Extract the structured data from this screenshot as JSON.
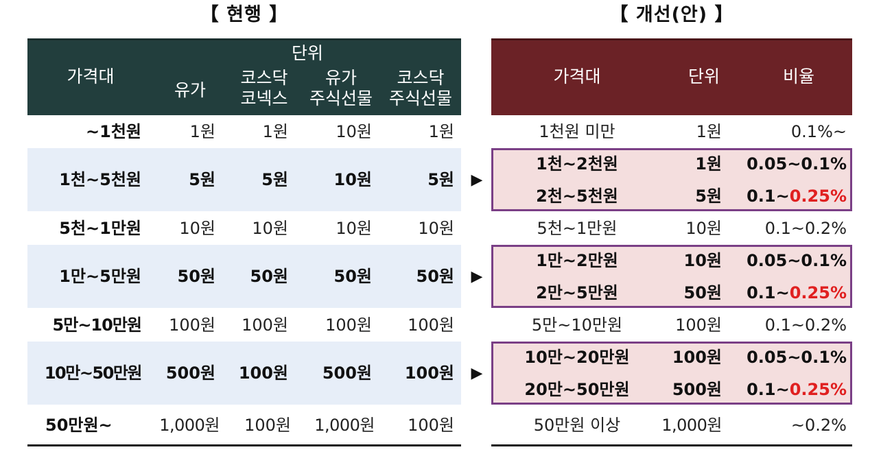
{
  "titles": {
    "current": "【 현행 】",
    "proposed": "【 개선(안) 】"
  },
  "left_header": {
    "price_range": "가격대",
    "unit_group": "단위",
    "col1": "유가",
    "col2_line1": "코스닥",
    "col2_line2": "코넥스",
    "col3_line1": "유가",
    "col3_line2": "주식선물",
    "col4_line1": "코스닥",
    "col4_line2": "주식선물"
  },
  "right_header": {
    "price_range": "가격대",
    "unit": "단위",
    "ratio": "비율"
  },
  "left_rows": [
    {
      "range": "~1천원",
      "c1": "1원",
      "c2": "1원",
      "c3": "10원",
      "c4": "1원"
    },
    {
      "range": "1천~5천원",
      "c1": "5원",
      "c2": "5원",
      "c3": "10원",
      "c4": "5원"
    },
    {
      "range": "5천~1만원",
      "c1": "10원",
      "c2": "10원",
      "c3": "10원",
      "c4": "10원"
    },
    {
      "range": "1만~5만원",
      "c1": "50원",
      "c2": "50원",
      "c3": "50원",
      "c4": "50원"
    },
    {
      "range": "5만~10만원",
      "c1": "100원",
      "c2": "100원",
      "c3": "100원",
      "c4": "100원"
    },
    {
      "range": "10만~50만원",
      "c1": "500원",
      "c2": "100원",
      "c3": "500원",
      "c4": "100원"
    },
    {
      "range": "50만원~",
      "c1": "1,000원",
      "c2": "100원",
      "c3": "1,000원",
      "c4": "100원"
    }
  ],
  "right_rows": [
    {
      "range": "1천원 미만",
      "unit": "1원",
      "ratio": "0.1%~"
    },
    {
      "range": "1천~2천원",
      "unit": "1원",
      "ratio": "0.05~0.1%"
    },
    {
      "range": "2천~5천원",
      "unit": "5원",
      "ratio_prefix": "0.1~",
      "ratio_highlight": "0.25%"
    },
    {
      "range": "5천~1만원",
      "unit": "10원",
      "ratio": "0.1~0.2%"
    },
    {
      "range": "1만~2만원",
      "unit": "10원",
      "ratio": "0.05~0.1%"
    },
    {
      "range": "2만~5만원",
      "unit": "50원",
      "ratio_prefix": "0.1~",
      "ratio_highlight": "0.25%"
    },
    {
      "range": "5만~10만원",
      "unit": "100원",
      "ratio": "0.1~0.2%"
    },
    {
      "range": "10만~20만원",
      "unit": "100원",
      "ratio": "0.05~0.1%"
    },
    {
      "range": "20만~50만원",
      "unit": "500원",
      "ratio_prefix": "0.1~",
      "ratio_highlight": "0.25%"
    },
    {
      "range": "50만원 이상",
      "unit": "1,000원",
      "ratio": "~0.2%"
    }
  ],
  "arrow_glyph": "▶",
  "colors": {
    "left_header_bg": "#223e3d",
    "right_header_bg": "#6b2226",
    "band_bg": "#e7eef8",
    "box_bg": "#f4dede",
    "box_border": "#7a3f86",
    "highlight_red": "#e02020"
  }
}
